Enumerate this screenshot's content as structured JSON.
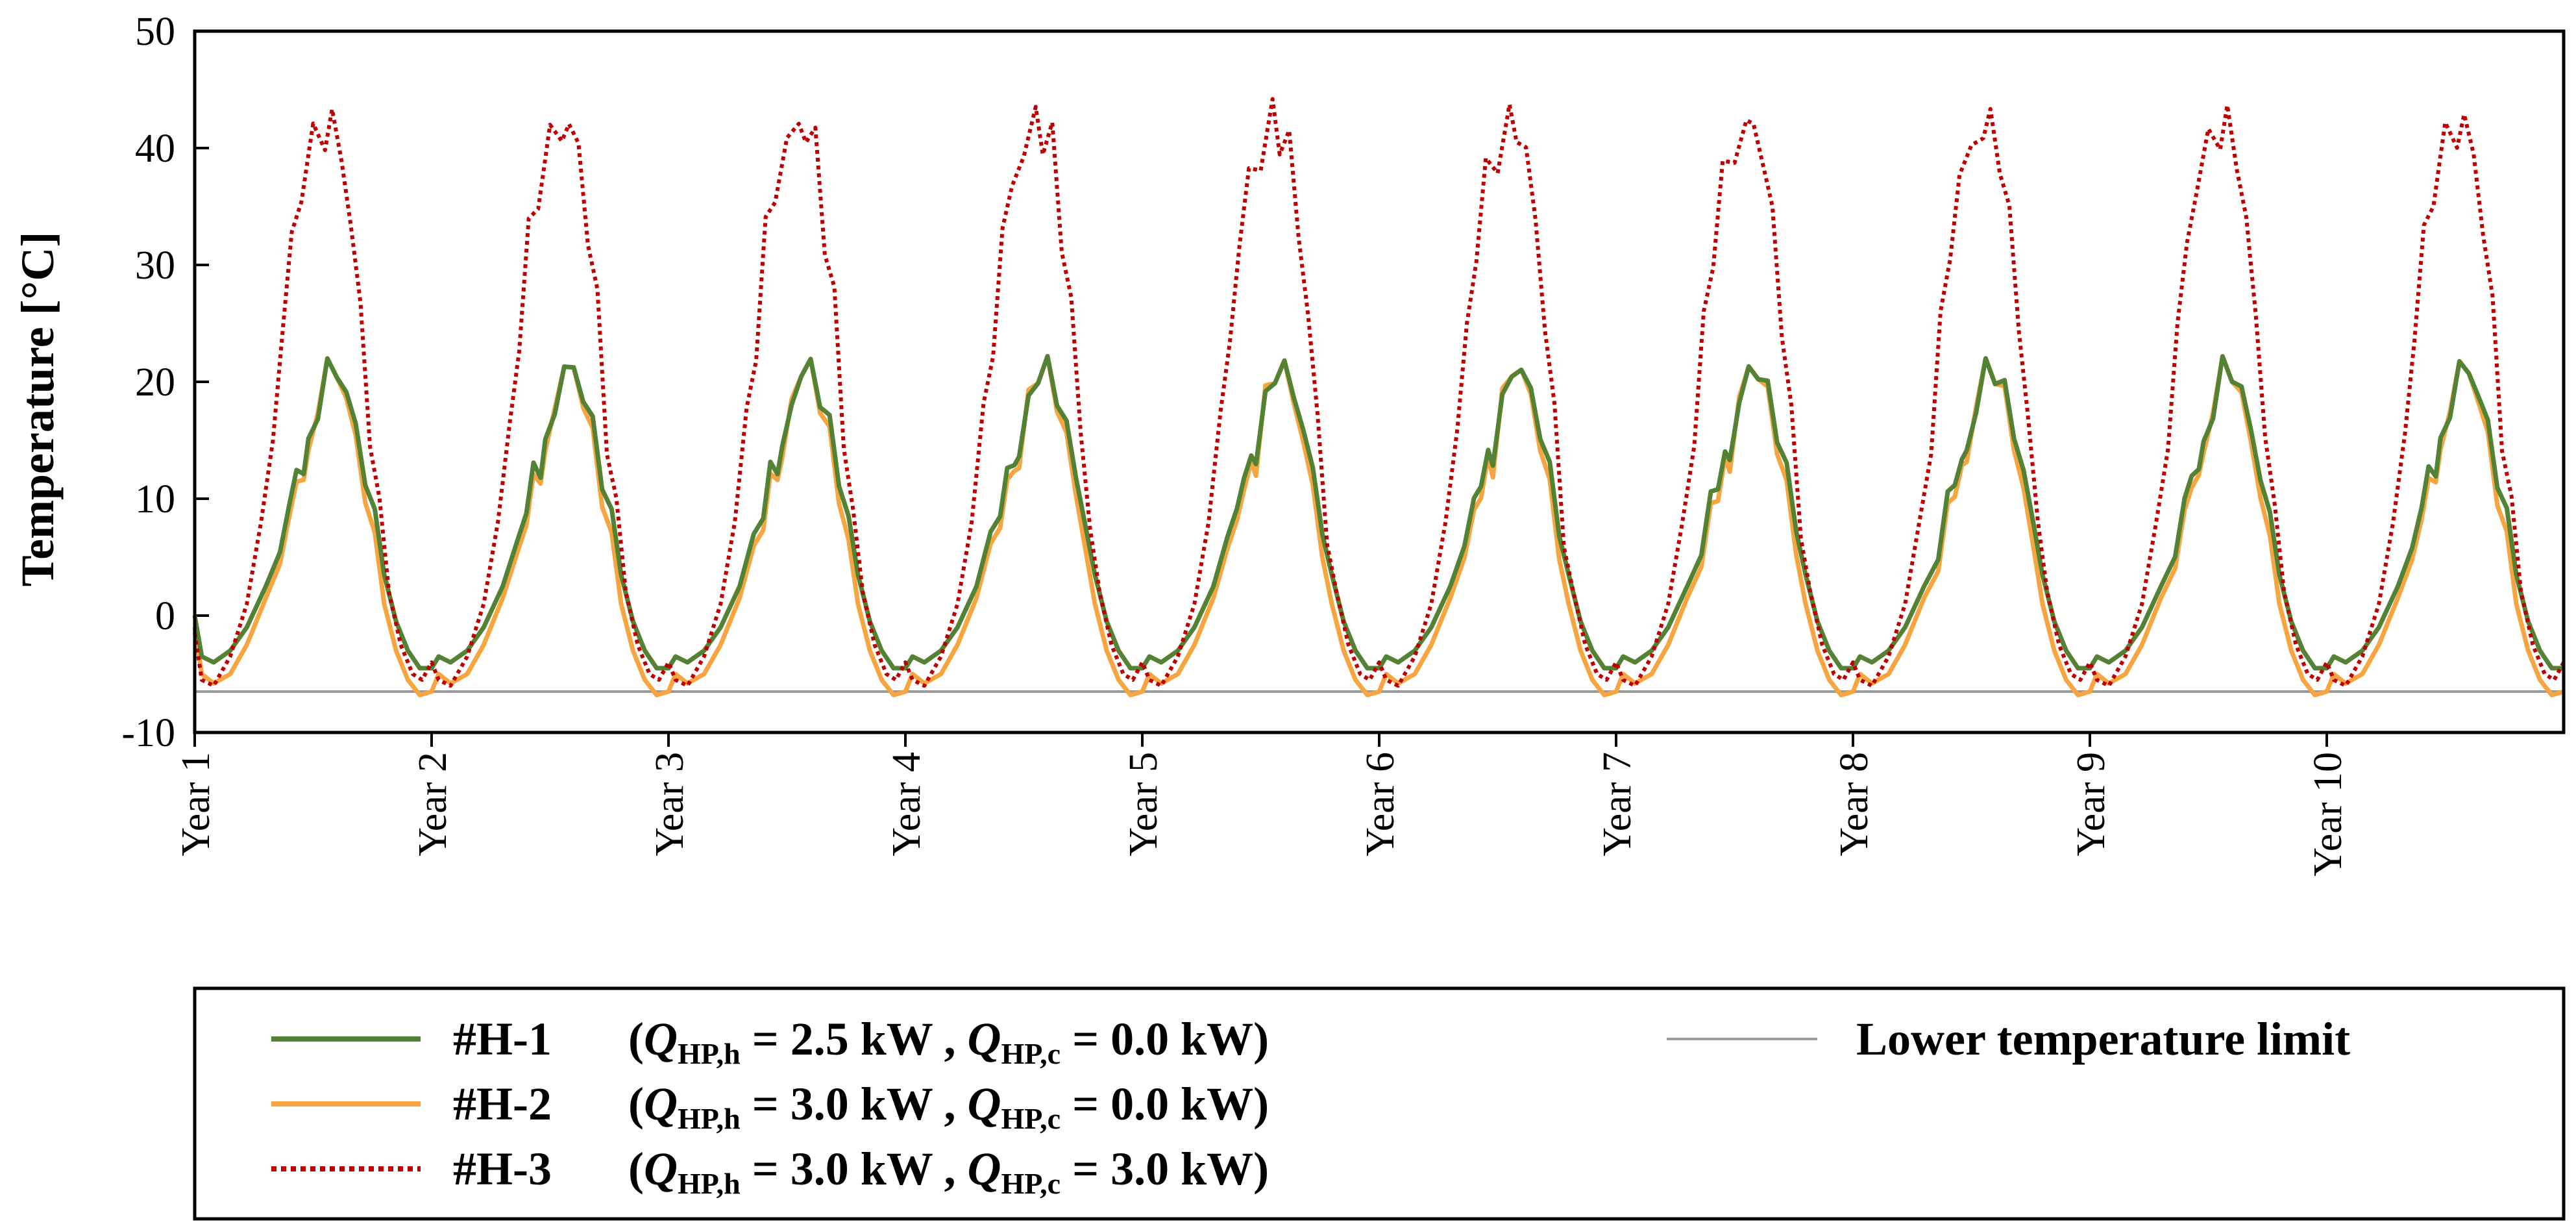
{
  "chart_data": {
    "type": "line",
    "title": "",
    "xlabel": "",
    "ylabel": "Temperature [°C]",
    "ylim": [
      -10,
      50
    ],
    "yticks": [
      "-10",
      "0",
      "10",
      "20",
      "30",
      "40",
      "50"
    ],
    "xlim": [
      1,
      11
    ],
    "xticks": [
      {
        "label": "Year 1",
        "value": 1
      },
      {
        "label": "Year 2",
        "value": 2
      },
      {
        "label": "Year 3",
        "value": 3
      },
      {
        "label": "Year 4",
        "value": 4
      },
      {
        "label": "Year 5",
        "value": 5
      },
      {
        "label": "Year 6",
        "value": 6
      },
      {
        "label": "Year 7",
        "value": 7
      },
      {
        "label": "Year 8",
        "value": 8
      },
      {
        "label": "Year 9",
        "value": 9
      },
      {
        "label": "Year 10",
        "value": 10
      }
    ],
    "grid": false,
    "legend_position": "bottom",
    "lower_limit": {
      "name": "Lower temperature limit",
      "value": -6.5,
      "color": "#999999"
    },
    "series": [
      {
        "id": "H1",
        "name": "#H-1",
        "label_params": [
          {
            "sym": "Q",
            "sub": "HP,h",
            "value": "2.5 kW"
          },
          {
            "sym": "Q",
            "sub": "HP,c",
            "value": "0.0 kW"
          }
        ],
        "color": "#548235",
        "style": "solid",
        "annual_cycle": [
          [
            0.0,
            0.0
          ],
          [
            0.03,
            -3.5
          ],
          [
            0.08,
            -4.0
          ],
          [
            0.15,
            -3.0
          ],
          [
            0.22,
            -1.0
          ],
          [
            0.3,
            2.5
          ],
          [
            0.36,
            6.0
          ],
          [
            0.4,
            9.5
          ],
          [
            0.43,
            12.0
          ],
          [
            0.46,
            13.0
          ],
          [
            0.48,
            14.0
          ],
          [
            0.52,
            18.0
          ],
          [
            0.56,
            21.0
          ],
          [
            0.6,
            21.0
          ],
          [
            0.64,
            19.0
          ],
          [
            0.68,
            16.0
          ],
          [
            0.72,
            12.0
          ],
          [
            0.76,
            8.0
          ],
          [
            0.8,
            3.5
          ],
          [
            0.85,
            -0.5
          ],
          [
            0.9,
            -3.0
          ],
          [
            0.95,
            -4.5
          ],
          [
            1.0,
            -4.5
          ]
        ]
      },
      {
        "id": "H2",
        "name": "#H-2",
        "label_params": [
          {
            "sym": "Q",
            "sub": "HP,h",
            "value": "3.0 kW"
          },
          {
            "sym": "Q",
            "sub": "HP,c",
            "value": "0.0 kW"
          }
        ],
        "color": "#F7A541",
        "style": "solid",
        "annual_cycle": [
          [
            0.0,
            -1.0
          ],
          [
            0.03,
            -5.0
          ],
          [
            0.08,
            -5.8
          ],
          [
            0.15,
            -5.0
          ],
          [
            0.22,
            -2.5
          ],
          [
            0.3,
            1.5
          ],
          [
            0.36,
            5.0
          ],
          [
            0.4,
            8.5
          ],
          [
            0.43,
            11.0
          ],
          [
            0.46,
            12.5
          ],
          [
            0.48,
            13.0
          ],
          [
            0.52,
            18.5
          ],
          [
            0.56,
            21.0
          ],
          [
            0.6,
            21.0
          ],
          [
            0.64,
            18.5
          ],
          [
            0.68,
            15.0
          ],
          [
            0.72,
            10.5
          ],
          [
            0.76,
            6.0
          ],
          [
            0.8,
            1.0
          ],
          [
            0.85,
            -3.0
          ],
          [
            0.9,
            -5.5
          ],
          [
            0.95,
            -6.8
          ],
          [
            1.0,
            -6.5
          ]
        ]
      },
      {
        "id": "H3",
        "name": "#H-3",
        "label_params": [
          {
            "sym": "Q",
            "sub": "HP,h",
            "value": "3.0 kW"
          },
          {
            "sym": "Q",
            "sub": "HP,c",
            "value": "3.0 kW"
          }
        ],
        "color": "#C00000",
        "style": "dotted",
        "annual_cycle": [
          [
            0.0,
            -1.5
          ],
          [
            0.03,
            -5.5
          ],
          [
            0.08,
            -6.0
          ],
          [
            0.15,
            -3.5
          ],
          [
            0.22,
            1.0
          ],
          [
            0.28,
            8.0
          ],
          [
            0.33,
            16.0
          ],
          [
            0.37,
            24.0
          ],
          [
            0.41,
            32.0
          ],
          [
            0.45,
            37.0
          ],
          [
            0.5,
            40.0
          ],
          [
            0.55,
            42.0
          ],
          [
            0.58,
            41.5
          ],
          [
            0.62,
            40.0
          ],
          [
            0.66,
            33.0
          ],
          [
            0.7,
            26.0
          ],
          [
            0.74,
            16.0
          ],
          [
            0.78,
            8.0
          ],
          [
            0.82,
            2.0
          ],
          [
            0.87,
            -2.5
          ],
          [
            0.92,
            -5.0
          ],
          [
            0.96,
            -5.5
          ],
          [
            1.0,
            -4.0
          ]
        ]
      }
    ]
  }
}
